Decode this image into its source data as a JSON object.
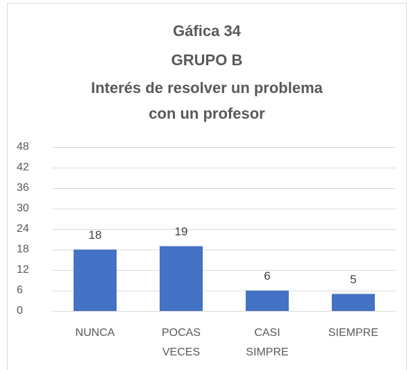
{
  "chart_data": {
    "type": "bar",
    "title": [
      "Gáfica 34",
      "GRUPO B",
      "Interés de resolver un problema",
      "con un profesor"
    ],
    "categories": [
      "NUNCA",
      "POCAS VECES",
      "CASI SIMPRE",
      "SIEMPRE"
    ],
    "values": [
      18,
      19,
      6,
      5
    ],
    "color": "#4472c4",
    "ylim": [
      0,
      48
    ],
    "yticks": [
      0,
      6,
      12,
      18,
      24,
      30,
      36,
      42,
      48
    ],
    "grid": true
  }
}
